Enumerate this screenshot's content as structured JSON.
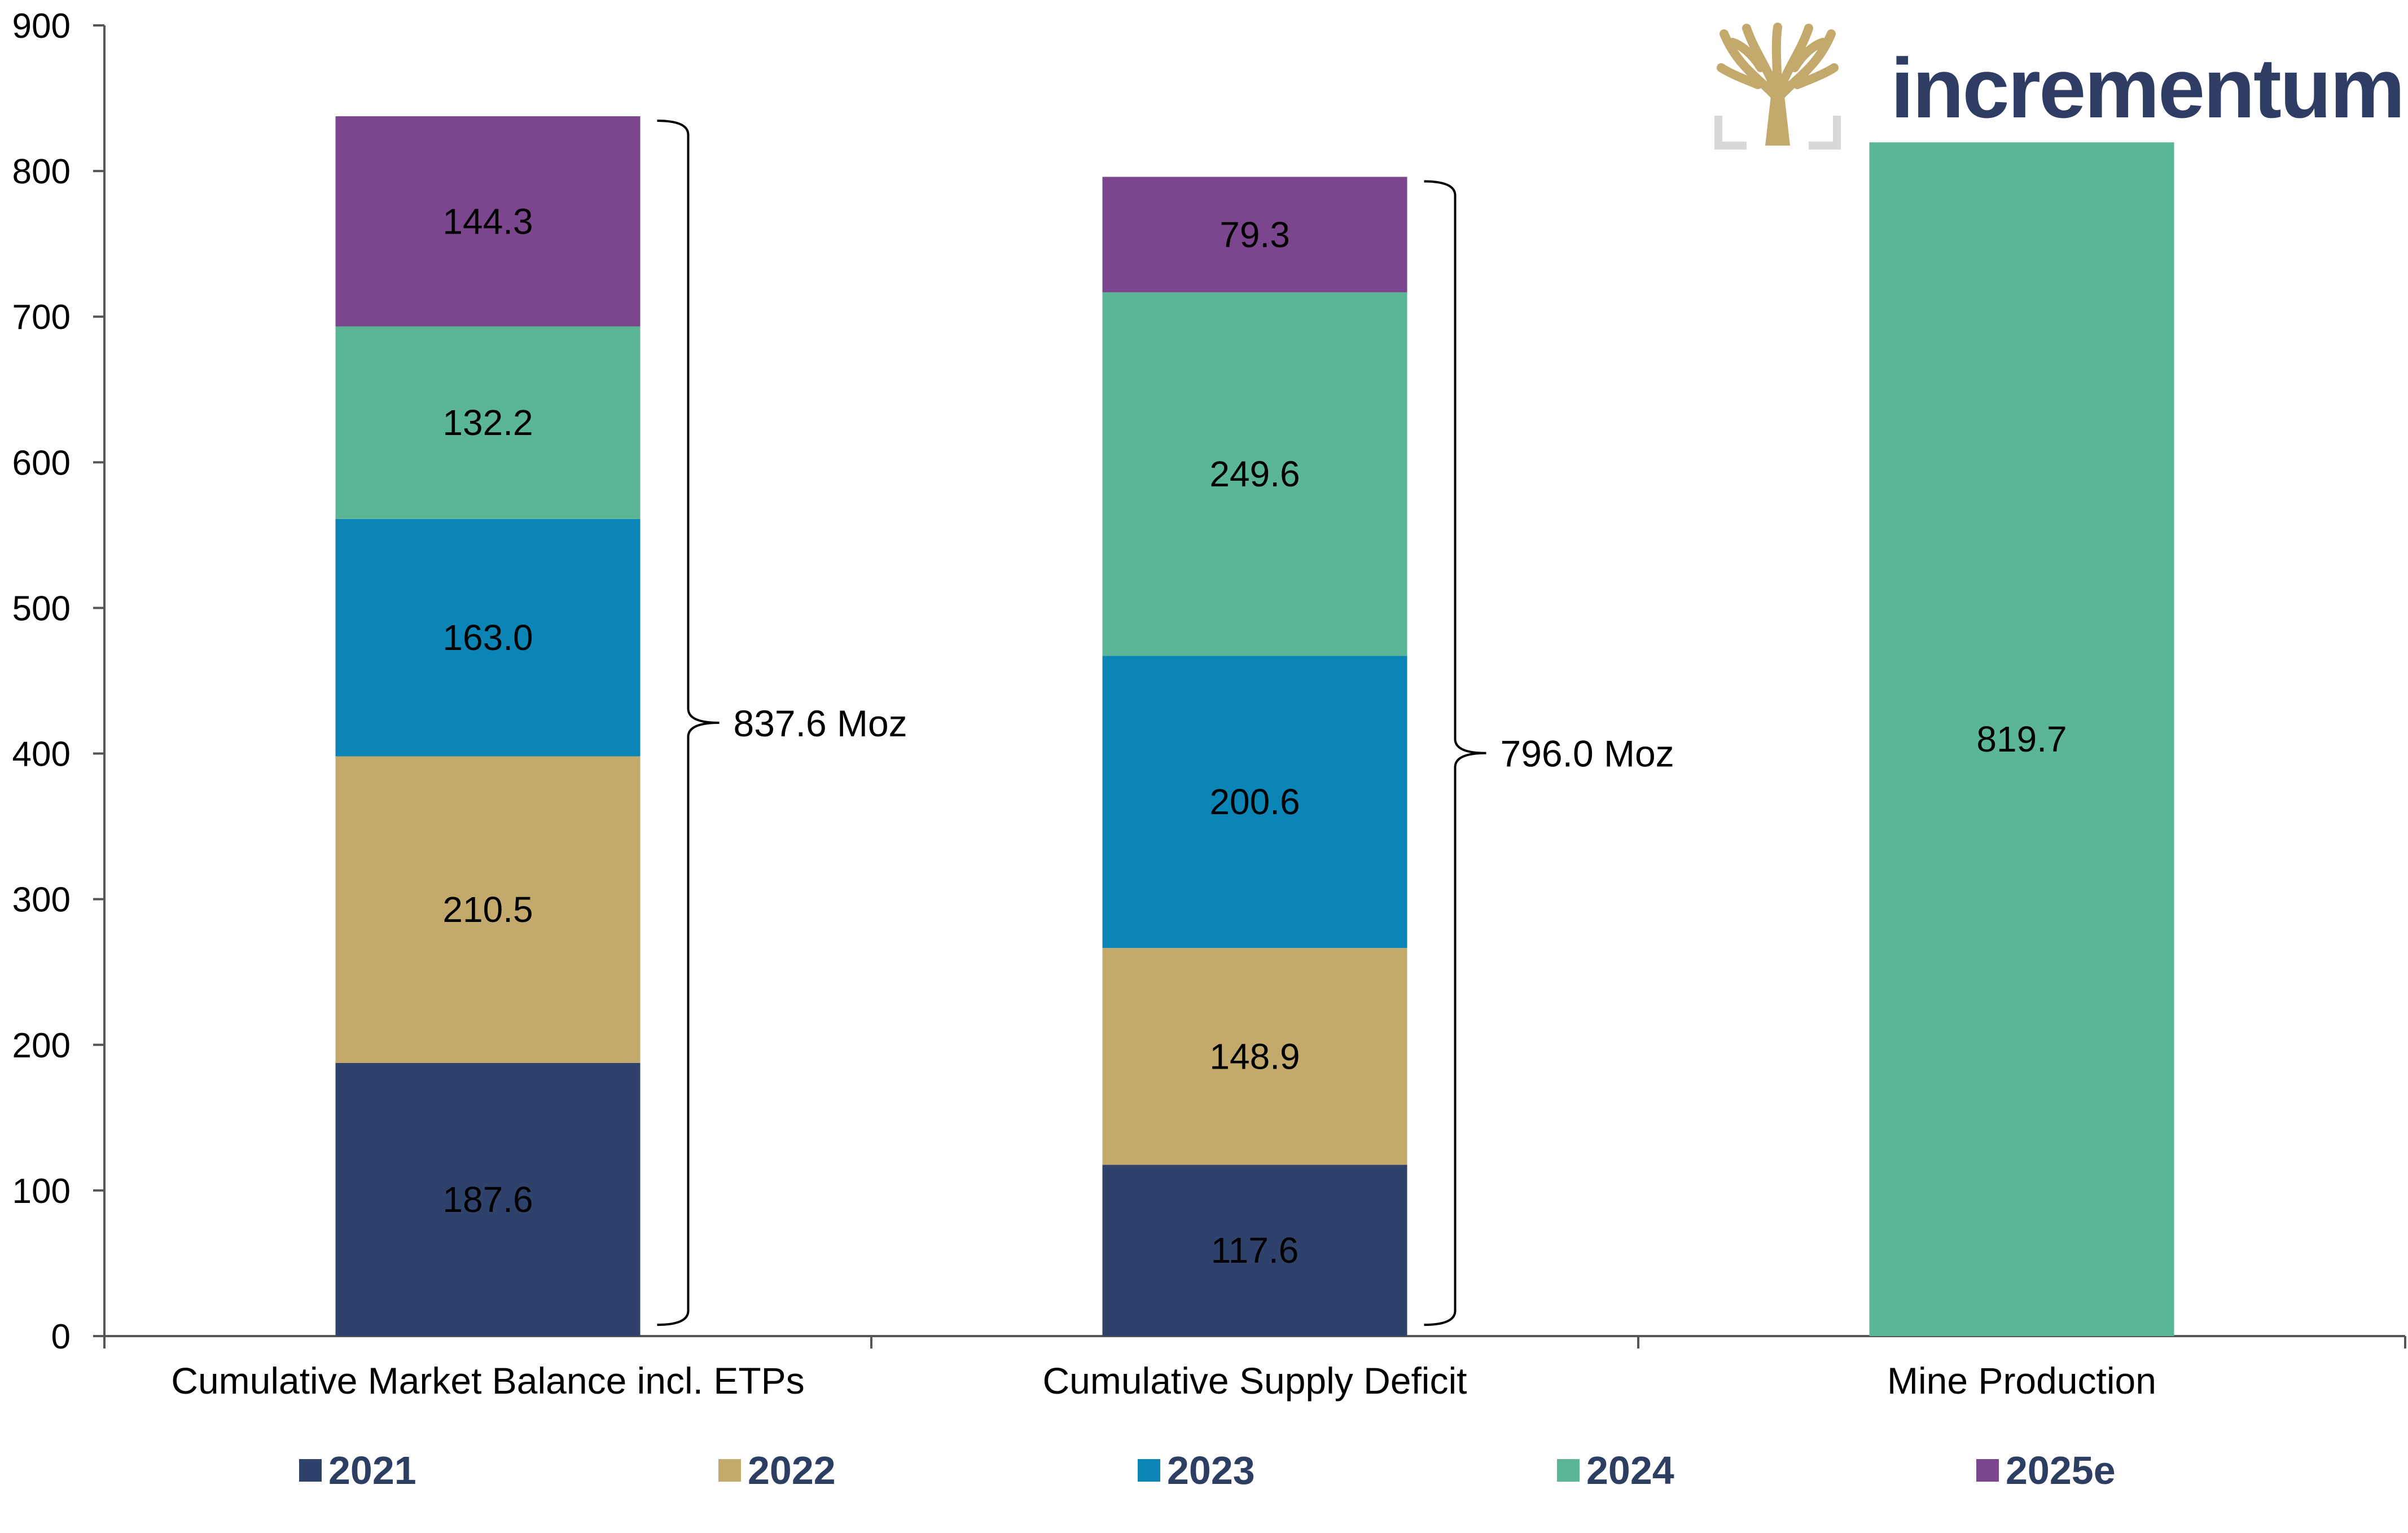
{
  "chart_data": {
    "type": "bar",
    "stacked": true,
    "categories": [
      "Cumulative Market Balance incl. ETPs",
      "Cumulative Supply Deficit",
      "Mine Production"
    ],
    "series": [
      {
        "name": "2021",
        "color": "#2e426b",
        "values": [
          187.6,
          117.6,
          null
        ]
      },
      {
        "name": "2022",
        "color": "#c3a96c",
        "values": [
          210.5,
          148.9,
          null
        ]
      },
      {
        "name": "2023",
        "color": "#0b84b6",
        "values": [
          163.0,
          200.6,
          null
        ]
      },
      {
        "name": "2024",
        "color": "#5bb696",
        "values": [
          132.2,
          249.6,
          819.7
        ]
      },
      {
        "name": "2025e",
        "color": "#7c468e",
        "values": [
          144.3,
          79.3,
          null
        ]
      }
    ],
    "totals": [
      {
        "category_index": 0,
        "label": "837.6 Moz"
      },
      {
        "category_index": 1,
        "label": "796.0 Moz"
      }
    ],
    "ylim": [
      0,
      900
    ],
    "yticks": [
      "0",
      "100",
      "200",
      "300",
      "400",
      "500",
      "600",
      "700",
      "800",
      "900"
    ],
    "legend_position": "bottom",
    "grid": false,
    "xlabel": "",
    "ylabel": ""
  },
  "logo": {
    "text": "incrementum",
    "icon": "tree-icon",
    "colors": {
      "tree": "#c3a96c",
      "frame": "#d8d8d8",
      "text": "#2f3d64"
    }
  }
}
